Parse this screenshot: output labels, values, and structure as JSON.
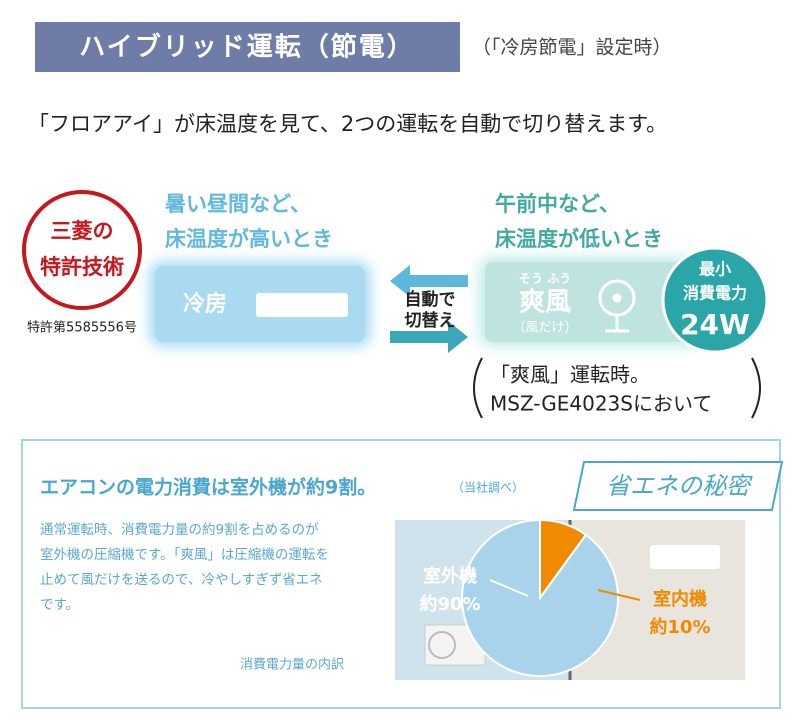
{
  "header": {
    "title": "ハイブリッド運転（節電）",
    "note": "（「冷房節電」設定時）"
  },
  "lead": "「フロアアイ」が床温度を見て、2つの運転を自動で切り替えます。",
  "badge": {
    "lines": [
      "三菱の",
      "特許技術"
    ],
    "patent": "特許第5585556号"
  },
  "cooling": {
    "condition": [
      "暑い昼間など、",
      "床温度が高いとき"
    ],
    "mode": "冷房"
  },
  "switch": [
    "自動で",
    "切替え"
  ],
  "breeze": {
    "condition": [
      "午前中など、",
      "床温度が低いとき"
    ],
    "ruby": "そう ふう",
    "mode": "爽風",
    "sub": "（風だけ）"
  },
  "power": {
    "lines": [
      "最小",
      "消費電力"
    ],
    "value": "24W"
  },
  "power_note": [
    "「爽風」運転時。",
    "MSZ-GE4023Sにおいて"
  ],
  "panel": {
    "heading": "エアコンの電力消費は室外機が約9割。",
    "source": "（当社調べ）",
    "tag": "省エネの秘密",
    "body": [
      "通常運転時、消費電力量の約9割を占めるのが",
      "室外機の圧縮機です。「爽風」は圧縮機の運転を",
      "止めて風だけを送るので、冷やしすぎず省エネ",
      "です。"
    ],
    "caption": "消費電力量の内訳",
    "pie": {
      "type": "pie",
      "slices": [
        {
          "name": "室内機",
          "label": "約10%",
          "value": 10,
          "color": "#f08a00"
        },
        {
          "name": "室外機",
          "label": "約90%",
          "value": 90,
          "color": "#a9d3ea"
        }
      ]
    }
  }
}
